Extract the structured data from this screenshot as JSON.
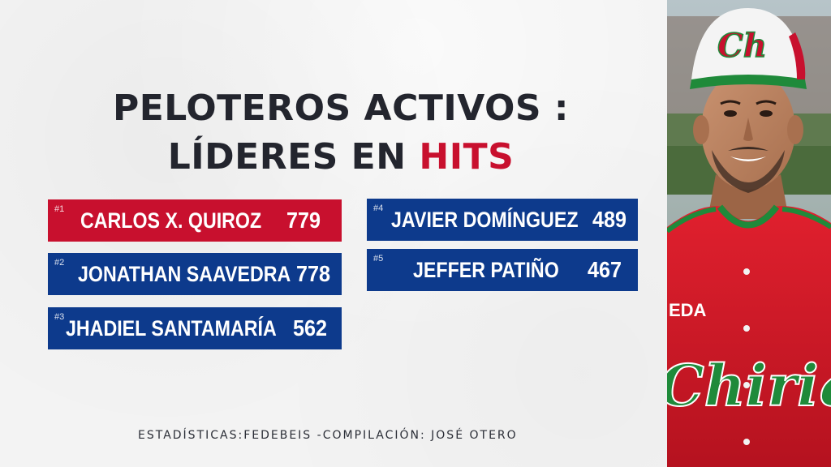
{
  "title": {
    "line1": "PELOTEROS ACTIVOS :",
    "line2_prefix": "LÍDERES EN",
    "line2_highlight": "HITS"
  },
  "leaders": [
    {
      "rank": "#1",
      "name": "CARLOS X. QUIROZ",
      "hits": "779",
      "color": "#c8102e"
    },
    {
      "rank": "#2",
      "name": "JONATHAN SAAVEDRA",
      "hits": "778",
      "color": "#0d3a8c"
    },
    {
      "rank": "#3",
      "name": "JHADIEL SANTAMARÍA",
      "hits": "562",
      "color": "#0d3a8c"
    },
    {
      "rank": "#4",
      "name": "JAVIER DOMÍNGUEZ",
      "hits": "489",
      "color": "#0d3a8c"
    },
    {
      "rank": "#5",
      "name": "JEFFER PATIÑO",
      "hits": "467",
      "color": "#0d3a8c"
    }
  ],
  "credit": "ESTADÍSTICAS:FEDEBEIS -COMPILACIÓN: JOSÉ OTERO",
  "photo": {
    "cap_logo": "Ch",
    "jersey_text": "Chiriqui",
    "jersey_chest_small": "EDA"
  }
}
